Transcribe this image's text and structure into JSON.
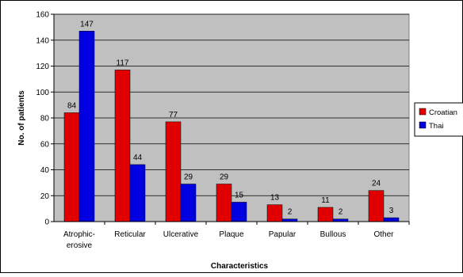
{
  "chart_data": {
    "type": "bar",
    "title": "",
    "xlabel": "Characteristics",
    "ylabel": "No. of patients",
    "ylim": [
      0,
      160
    ],
    "yticks": [
      0,
      20,
      40,
      60,
      80,
      100,
      120,
      140,
      160
    ],
    "grid": true,
    "legend_position": "right",
    "categories": [
      [
        "Atrophic-",
        "erosive"
      ],
      [
        "Reticular"
      ],
      [
        "Ulcerative"
      ],
      [
        "Plaque"
      ],
      [
        "Papular"
      ],
      [
        "Bullous"
      ],
      [
        "Other"
      ]
    ],
    "series": [
      {
        "name": "Croatian",
        "color": "#e00000",
        "values": [
          84,
          117,
          77,
          29,
          13,
          11,
          24
        ]
      },
      {
        "name": "Thai",
        "color": "#0000e0",
        "values": [
          147,
          44,
          29,
          15,
          2,
          2,
          3
        ]
      }
    ],
    "colors": {
      "plot_bg": "#c0c0c0",
      "grid": "#000000",
      "frame": "#000000"
    }
  }
}
